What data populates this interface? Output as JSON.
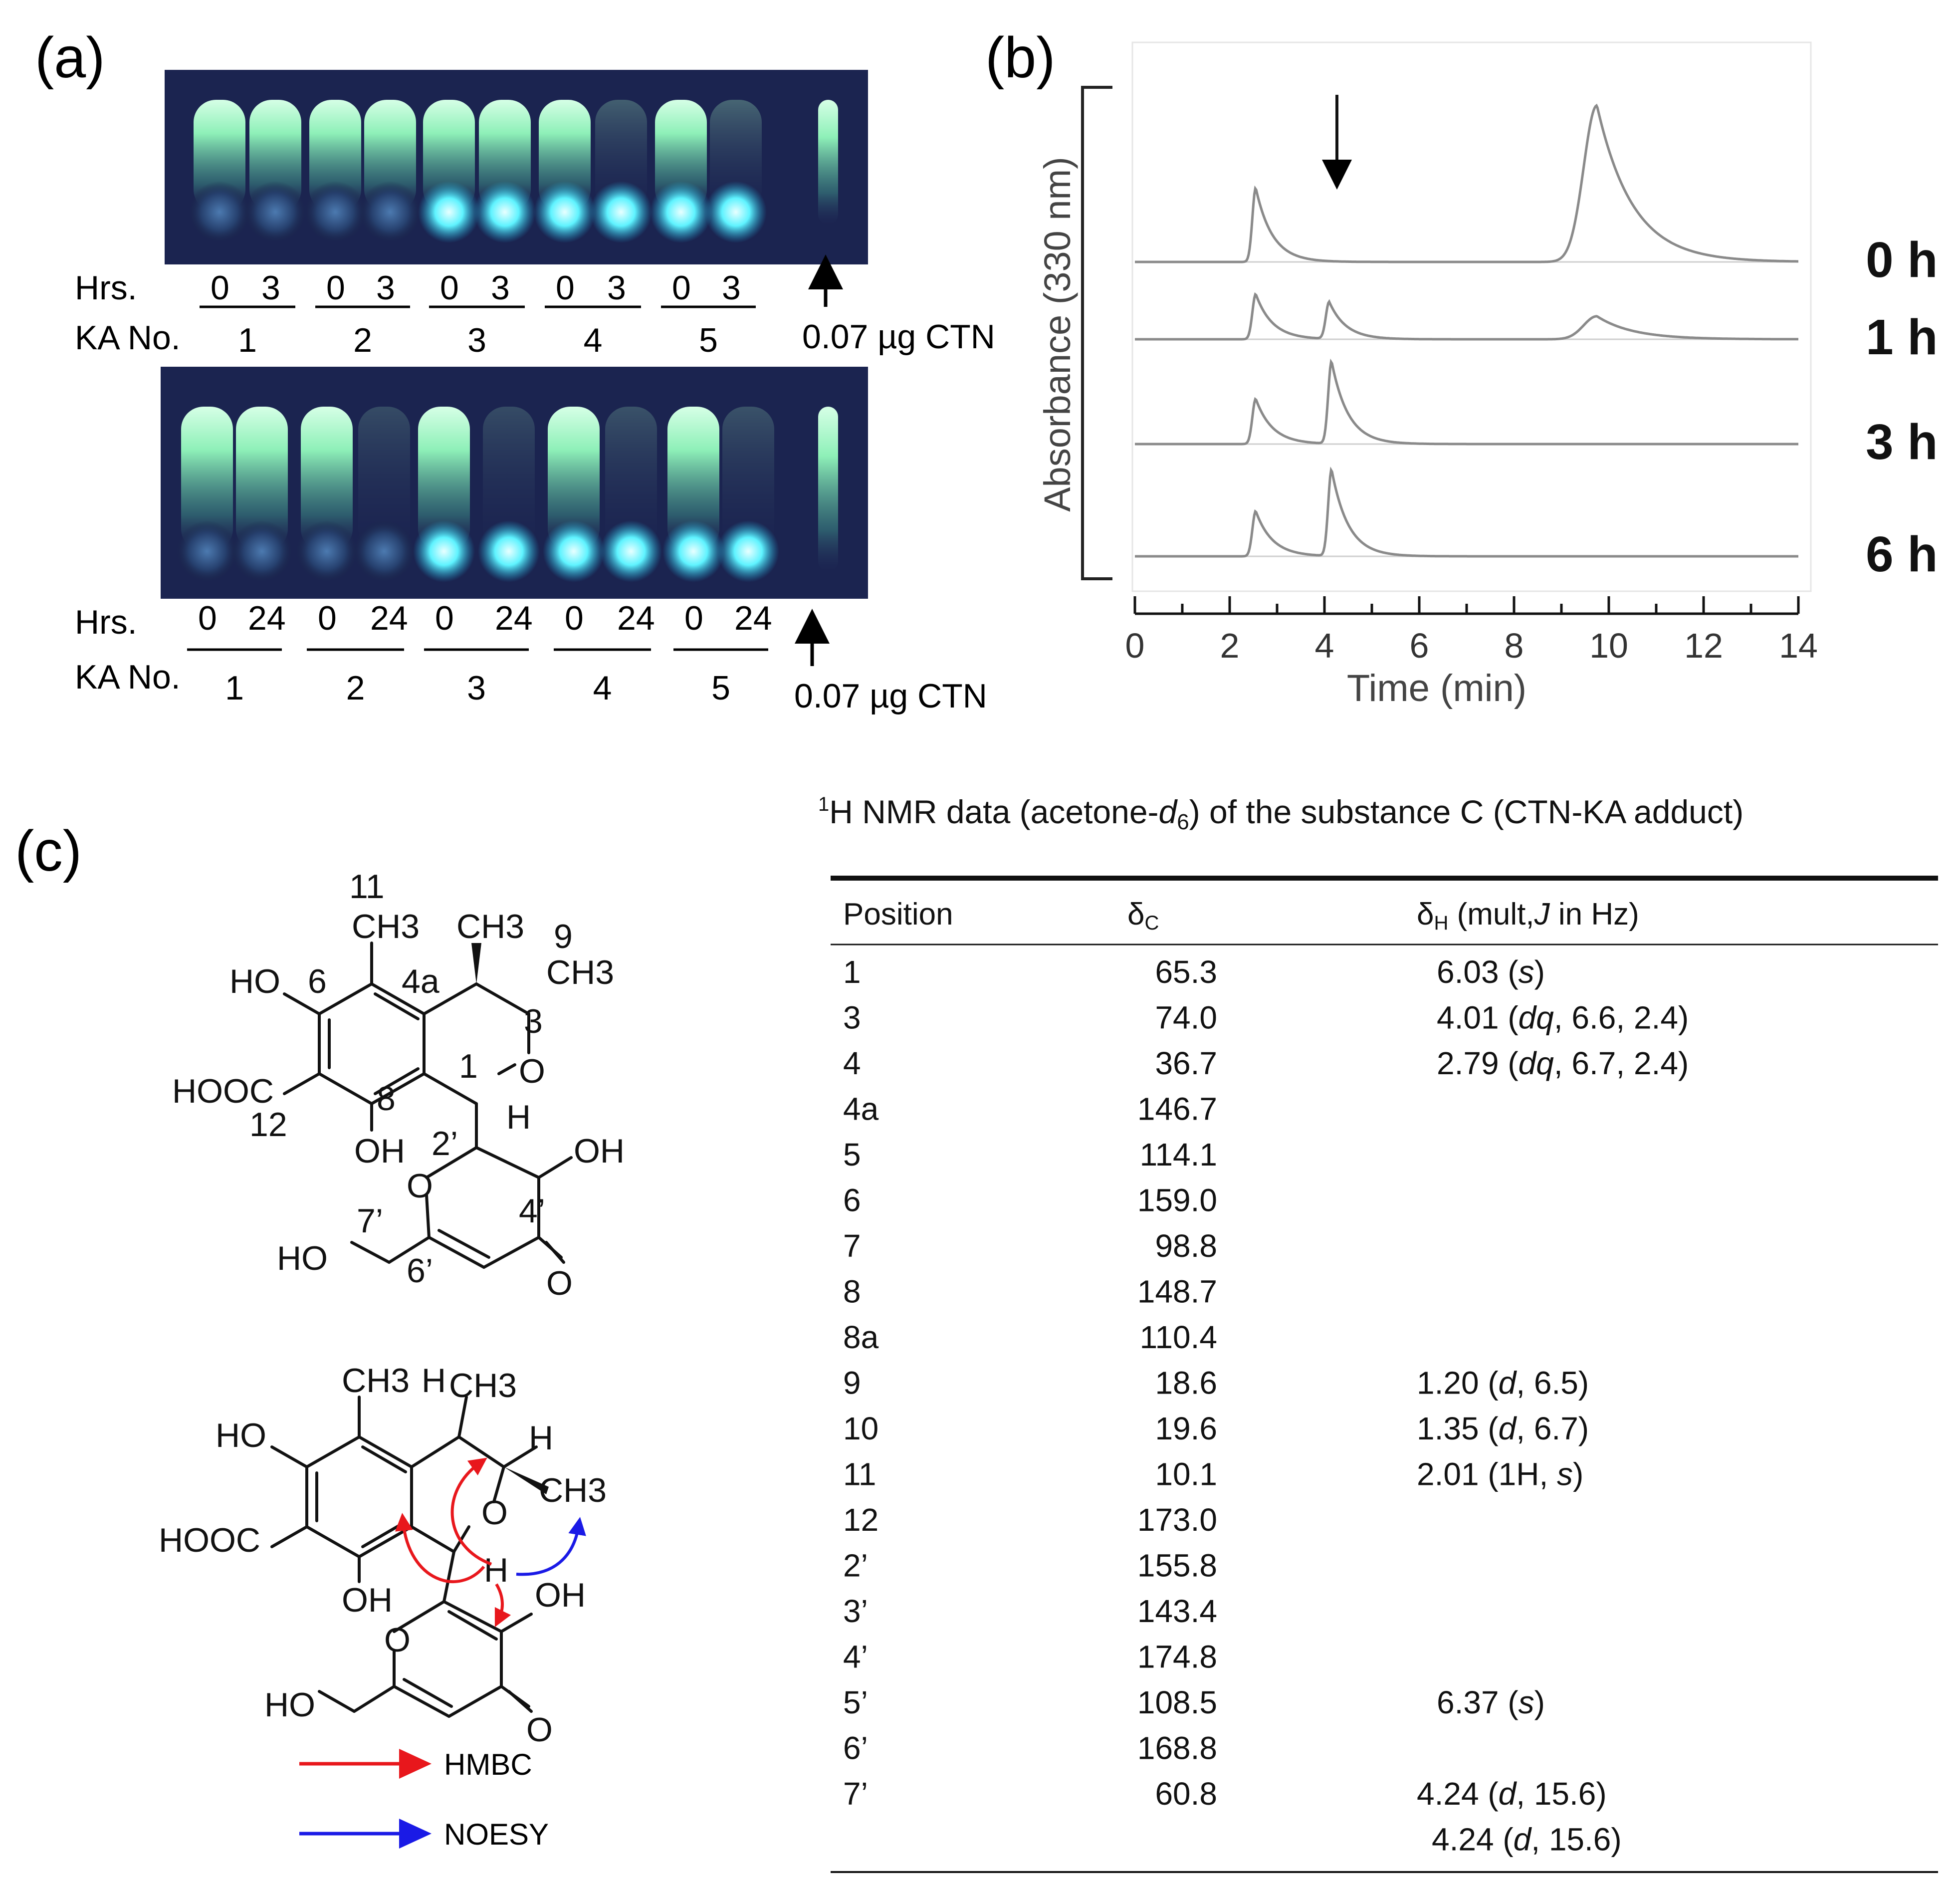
{
  "panel_a": {
    "label": "(a)",
    "top_plate": {
      "hrs_label": "Hrs.",
      "ka_label": "KA No.",
      "hours": [
        "0",
        "3"
      ],
      "ka_numbers": [
        "1",
        "2",
        "3",
        "4",
        "5"
      ],
      "standard": "0.07 µg CTN"
    },
    "bottom_plate": {
      "hrs_label": "Hrs.",
      "ka_label": "KA No.",
      "hours": [
        "0",
        "24"
      ],
      "ka_numbers": [
        "1",
        "2",
        "3",
        "4",
        "5"
      ],
      "standard": "0.07 µg CTN"
    }
  },
  "panel_b": {
    "label": "(b)",
    "chart_data": {
      "type": "line",
      "xlabel": "Time (min)",
      "ylabel": "Absorbance (330 nm)",
      "xlim": [
        0,
        14
      ],
      "xticks": [
        0,
        2,
        4,
        6,
        8,
        10,
        12,
        14
      ],
      "grid": false,
      "annotations": [
        "arrow at ~4.1 min"
      ],
      "series": [
        {
          "name": "0 h",
          "peaks": [
            {
              "time": 2.55,
              "height": 0.9
            },
            {
              "time": 9.75,
              "height": 1.9
            }
          ]
        },
        {
          "name": "1 h",
          "peaks": [
            {
              "time": 2.55,
              "height": 0.55
            },
            {
              "time": 4.1,
              "height": 0.45
            },
            {
              "time": 9.75,
              "height": 0.28
            }
          ]
        },
        {
          "name": "3 h",
          "peaks": [
            {
              "time": 2.55,
              "height": 0.55
            },
            {
              "time": 4.15,
              "height": 1.0
            }
          ]
        },
        {
          "name": "6 h",
          "peaks": [
            {
              "time": 2.55,
              "height": 0.55
            },
            {
              "time": 4.15,
              "height": 1.05
            }
          ]
        }
      ]
    }
  },
  "panel_c": {
    "label": "(c)",
    "legend": {
      "hmbc": "HMBC",
      "noesy": "NOESY"
    },
    "legend_colors": {
      "hmbc": "#e8171c",
      "noesy": "#1a1ae6"
    },
    "structure_labels": {
      "ch3": "CH3",
      "ho": "HO",
      "hooc": "HOOC",
      "oh": "OH",
      "o": "O",
      "h": "H",
      "n11": "11",
      "n9": "9",
      "n6": "6",
      "n4a": "4a",
      "n3": "3",
      "n1": "1",
      "n8": "8",
      "n12": "12",
      "n2p": "2’",
      "n4p": "4’",
      "n7p": "7’",
      "n6p": "6’"
    }
  },
  "nmr_table": {
    "title": "1H NMR data (acetone-d6) of the substance C (CTN-KA adduct)",
    "columns": [
      "Position",
      "δC",
      "δH (mult,J in Hz)"
    ],
    "rows": [
      {
        "pos": "1",
        "dc": "65.3",
        "dh": "6.03",
        "m": "s",
        "j": ""
      },
      {
        "pos": "3",
        "dc": "74.0",
        "dh": "4.01",
        "m": "dq",
        "j": ", 6.6, 2.4"
      },
      {
        "pos": "4",
        "dc": "36.7",
        "dh": "2.79",
        "m": "dq",
        "j": ", 6.7, 2.4"
      },
      {
        "pos": "4a",
        "dc": "146.7",
        "dh": "",
        "m": "",
        "j": ""
      },
      {
        "pos": "5",
        "dc": "114.1",
        "dh": "",
        "m": "",
        "j": ""
      },
      {
        "pos": "6",
        "dc": "159.0",
        "dh": "",
        "m": "",
        "j": ""
      },
      {
        "pos": "7",
        "dc": "98.8",
        "dh": "",
        "m": "",
        "j": ""
      },
      {
        "pos": "8",
        "dc": "148.7",
        "dh": "",
        "m": "",
        "j": ""
      },
      {
        "pos": "8a",
        "dc": "110.4",
        "dh": "",
        "m": "",
        "j": ""
      },
      {
        "pos": "9",
        "dc": "18.6",
        "dh": "1.20",
        "m": "d",
        "j": ", 6.5"
      },
      {
        "pos": "10",
        "dc": "19.6",
        "dh": "1.35",
        "m": "d",
        "j": ", 6.7"
      },
      {
        "pos": "11",
        "dc": "10.1",
        "dh": "2.01",
        "m": "1H, s",
        "j": ""
      },
      {
        "pos": "12",
        "dc": "173.0",
        "dh": "",
        "m": "",
        "j": ""
      },
      {
        "pos": "2’",
        "dc": "155.8",
        "dh": "",
        "m": "",
        "j": ""
      },
      {
        "pos": "3’",
        "dc": "143.4",
        "dh": "",
        "m": "",
        "j": ""
      },
      {
        "pos": "4’",
        "dc": "174.8",
        "dh": "",
        "m": "",
        "j": ""
      },
      {
        "pos": "5’",
        "dc": "108.5",
        "dh": "6.37",
        "m": "s",
        "j": ""
      },
      {
        "pos": "6’",
        "dc": "168.8",
        "dh": "",
        "m": "",
        "j": ""
      },
      {
        "pos": "7’",
        "dc": "60.8",
        "dh": "4.24",
        "m": "d",
        "j": ", 15.6"
      },
      {
        "pos": "",
        "dc": "",
        "dh": "4.24",
        "m": "d",
        "j": ", 15.6"
      }
    ]
  }
}
